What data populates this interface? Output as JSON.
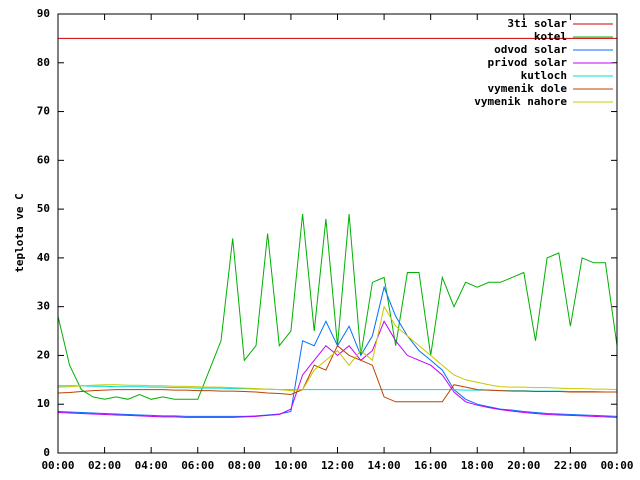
{
  "chart_data": {
    "type": "line",
    "ylabel": "teplota ve C",
    "xlim": [
      0,
      24
    ],
    "ylim": [
      0,
      90
    ],
    "xticks": [
      {
        "value": 0,
        "label": "00:00"
      },
      {
        "value": 2,
        "label": "02:00"
      },
      {
        "value": 4,
        "label": "04:00"
      },
      {
        "value": 6,
        "label": "06:00"
      },
      {
        "value": 8,
        "label": "08:00"
      },
      {
        "value": 10,
        "label": "10:00"
      },
      {
        "value": 12,
        "label": "12:00"
      },
      {
        "value": 14,
        "label": "14:00"
      },
      {
        "value": 16,
        "label": "16:00"
      },
      {
        "value": 18,
        "label": "18:00"
      },
      {
        "value": 20,
        "label": "20:00"
      },
      {
        "value": 22,
        "label": "22:00"
      },
      {
        "value": 24,
        "label": "00:00"
      }
    ],
    "yticks": [
      0,
      10,
      20,
      30,
      40,
      50,
      60,
      70,
      80,
      90
    ],
    "grid": false,
    "legend": "top-right",
    "x": [
      0,
      0.5,
      1,
      1.5,
      2,
      2.5,
      3,
      3.5,
      4,
      4.5,
      5,
      5.5,
      6,
      6.5,
      7,
      7.5,
      8,
      8.5,
      9,
      9.5,
      10,
      10.5,
      11,
      11.5,
      12,
      12.5,
      13,
      13.5,
      14,
      14.5,
      15,
      15.5,
      16,
      16.5,
      17,
      17.5,
      18,
      18.5,
      19,
      19.5,
      20,
      20.5,
      21,
      21.5,
      22,
      22.5,
      23,
      23.5,
      24
    ],
    "series": [
      {
        "name": "3ti solar",
        "color": "#cc0000",
        "values": [
          85,
          85,
          85,
          85,
          85,
          85,
          85,
          85,
          85,
          85,
          85,
          85,
          85,
          85,
          85,
          85,
          85,
          85,
          85,
          85,
          85,
          85,
          85,
          85,
          85,
          85,
          85,
          85,
          85,
          85,
          85,
          85,
          85,
          85,
          85,
          85,
          85,
          85,
          85,
          85,
          85,
          85,
          85,
          85,
          85,
          85,
          85,
          85,
          85
        ]
      },
      {
        "name": "kotel",
        "color": "#00b000",
        "values": [
          28,
          18,
          13,
          11.5,
          11,
          11.5,
          11,
          12,
          11,
          11.5,
          11,
          11,
          11,
          17,
          23,
          44,
          19,
          22,
          45,
          22,
          25,
          49,
          25,
          48,
          22,
          49,
          20,
          35,
          36,
          22,
          37,
          37,
          20,
          36,
          30,
          35,
          34,
          35,
          35,
          36,
          37,
          23,
          40,
          41,
          26,
          40,
          39,
          39,
          22
        ]
      },
      {
        "name": "odvod solar",
        "color": "#0070ff",
        "values": [
          8.5,
          8.4,
          8.3,
          8.2,
          8.1,
          8,
          7.9,
          7.8,
          7.7,
          7.6,
          7.6,
          7.5,
          7.5,
          7.5,
          7.5,
          7.5,
          7.5,
          7.6,
          7.8,
          8,
          8.5,
          23,
          22,
          27,
          22,
          26,
          20,
          24,
          34,
          28,
          24,
          21,
          19,
          17,
          13,
          11,
          10,
          9.5,
          9,
          8.8,
          8.5,
          8.3,
          8.1,
          8,
          7.9,
          7.8,
          7.7,
          7.6,
          7.5
        ]
      },
      {
        "name": "privod solar",
        "color": "#c000ff",
        "values": [
          8.3,
          8.2,
          8.1,
          8,
          7.9,
          7.8,
          7.7,
          7.6,
          7.5,
          7.4,
          7.4,
          7.3,
          7.3,
          7.3,
          7.3,
          7.3,
          7.4,
          7.5,
          7.7,
          7.9,
          9,
          16,
          19,
          22,
          20,
          22,
          19,
          21,
          27,
          23,
          20,
          19,
          18,
          16,
          12.5,
          10.5,
          9.8,
          9.3,
          8.9,
          8.6,
          8.3,
          8.1,
          7.9,
          7.8,
          7.7,
          7.6,
          7.5,
          7.4,
          7.3
        ]
      },
      {
        "name": "kutloch",
        "color": "#00dddd",
        "values": [
          13.8,
          13.8,
          13.8,
          13.7,
          13.7,
          13.6,
          13.6,
          13.6,
          13.5,
          13.5,
          13.4,
          13.4,
          13.3,
          13.3,
          13.3,
          13.2,
          13.2,
          13.1,
          13.1,
          13,
          13,
          13,
          13,
          13,
          13,
          13,
          13,
          13,
          13,
          13,
          13,
          13,
          13,
          13,
          13,
          12.9,
          12.9,
          12.9,
          12.8,
          12.8,
          12.8,
          12.7,
          12.7,
          12.7,
          12.6,
          12.6,
          12.6,
          12.5,
          12.5
        ]
      },
      {
        "name": "vymenik dole",
        "color": "#c04000",
        "values": [
          12.3,
          12.4,
          12.6,
          12.8,
          12.9,
          13,
          13,
          13,
          13,
          13,
          12.9,
          12.9,
          12.8,
          12.8,
          12.7,
          12.7,
          12.6,
          12.5,
          12.3,
          12.2,
          12,
          13,
          18,
          17,
          22,
          20,
          19,
          18,
          11.5,
          10.5,
          10.5,
          10.5,
          10.5,
          10.5,
          14,
          13.5,
          13,
          12.9,
          12.8,
          12.7,
          12.7,
          12.6,
          12.6,
          12.6,
          12.5,
          12.5,
          12.5,
          12.5,
          12.5
        ]
      },
      {
        "name": "vymenik nahore",
        "color": "#c8c800",
        "values": [
          13.5,
          13.6,
          13.8,
          13.9,
          14,
          14,
          13.9,
          13.9,
          13.8,
          13.8,
          13.7,
          13.7,
          13.6,
          13.5,
          13.5,
          13.4,
          13.3,
          13.2,
          13.1,
          13,
          12.8,
          13,
          17,
          19,
          21,
          18,
          21,
          19,
          30,
          26,
          24,
          22,
          20,
          18,
          16,
          15,
          14.5,
          14,
          13.6,
          13.5,
          13.5,
          13.4,
          13.4,
          13.3,
          13.2,
          13.2,
          13.1,
          13.1,
          13
        ]
      }
    ]
  }
}
